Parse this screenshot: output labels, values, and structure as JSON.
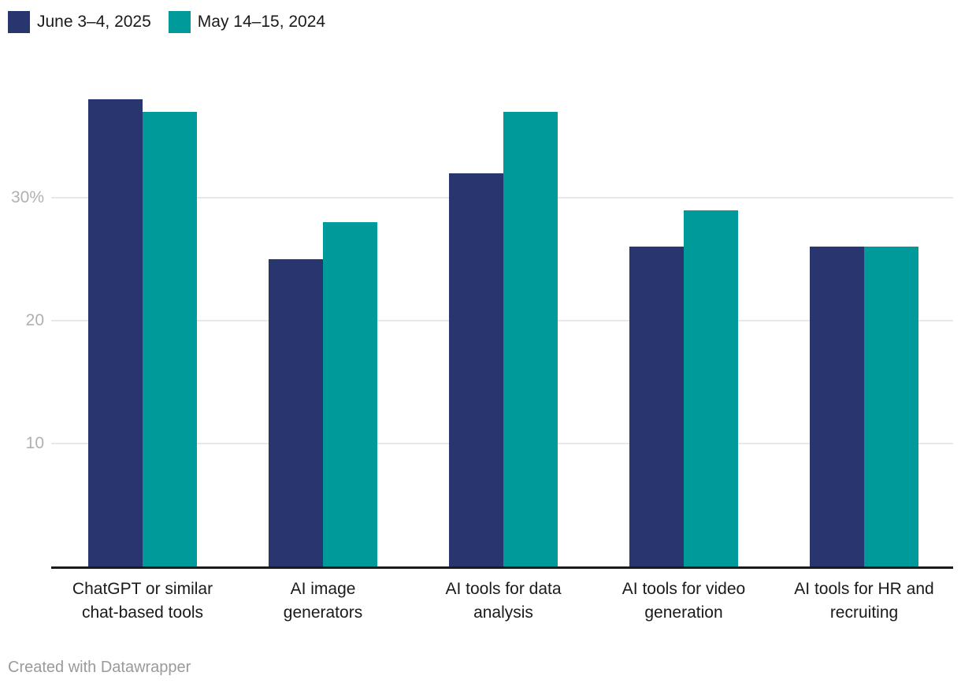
{
  "legend": {
    "items": [
      {
        "label": "June 3–4, 2025",
        "color": "#28356f"
      },
      {
        "label": "May 14–15, 2024",
        "color": "#009a9b"
      }
    ]
  },
  "footer": {
    "text": "Created with Datawrapper"
  },
  "chart_data": {
    "type": "bar",
    "categories": [
      "ChatGPT or similar\nchat-based tools",
      "AI image\ngenerators",
      "AI tools for data\nanalysis",
      "AI tools for video\ngeneration",
      "AI tools for HR and\nrecruiting"
    ],
    "series": [
      {
        "name": "June 3–4, 2025",
        "color": "#28356f",
        "values": [
          38,
          25,
          32,
          26,
          26
        ]
      },
      {
        "name": "May 14–15, 2024",
        "color": "#009a9b",
        "values": [
          37,
          28,
          37,
          29,
          26
        ]
      }
    ],
    "title": "",
    "xlabel": "",
    "ylabel": "",
    "unit": "%",
    "ylim": [
      0,
      40
    ],
    "yticks": [
      {
        "value": 10,
        "label": "10"
      },
      {
        "value": 20,
        "label": "20"
      },
      {
        "value": 30,
        "label": "30%"
      }
    ],
    "grid": "horizontal",
    "legend_position": "top-left",
    "axis_color": "#1a1a1a",
    "gridline_color": "#e8e8e8",
    "tick_label_color": "#b0b0b0"
  }
}
